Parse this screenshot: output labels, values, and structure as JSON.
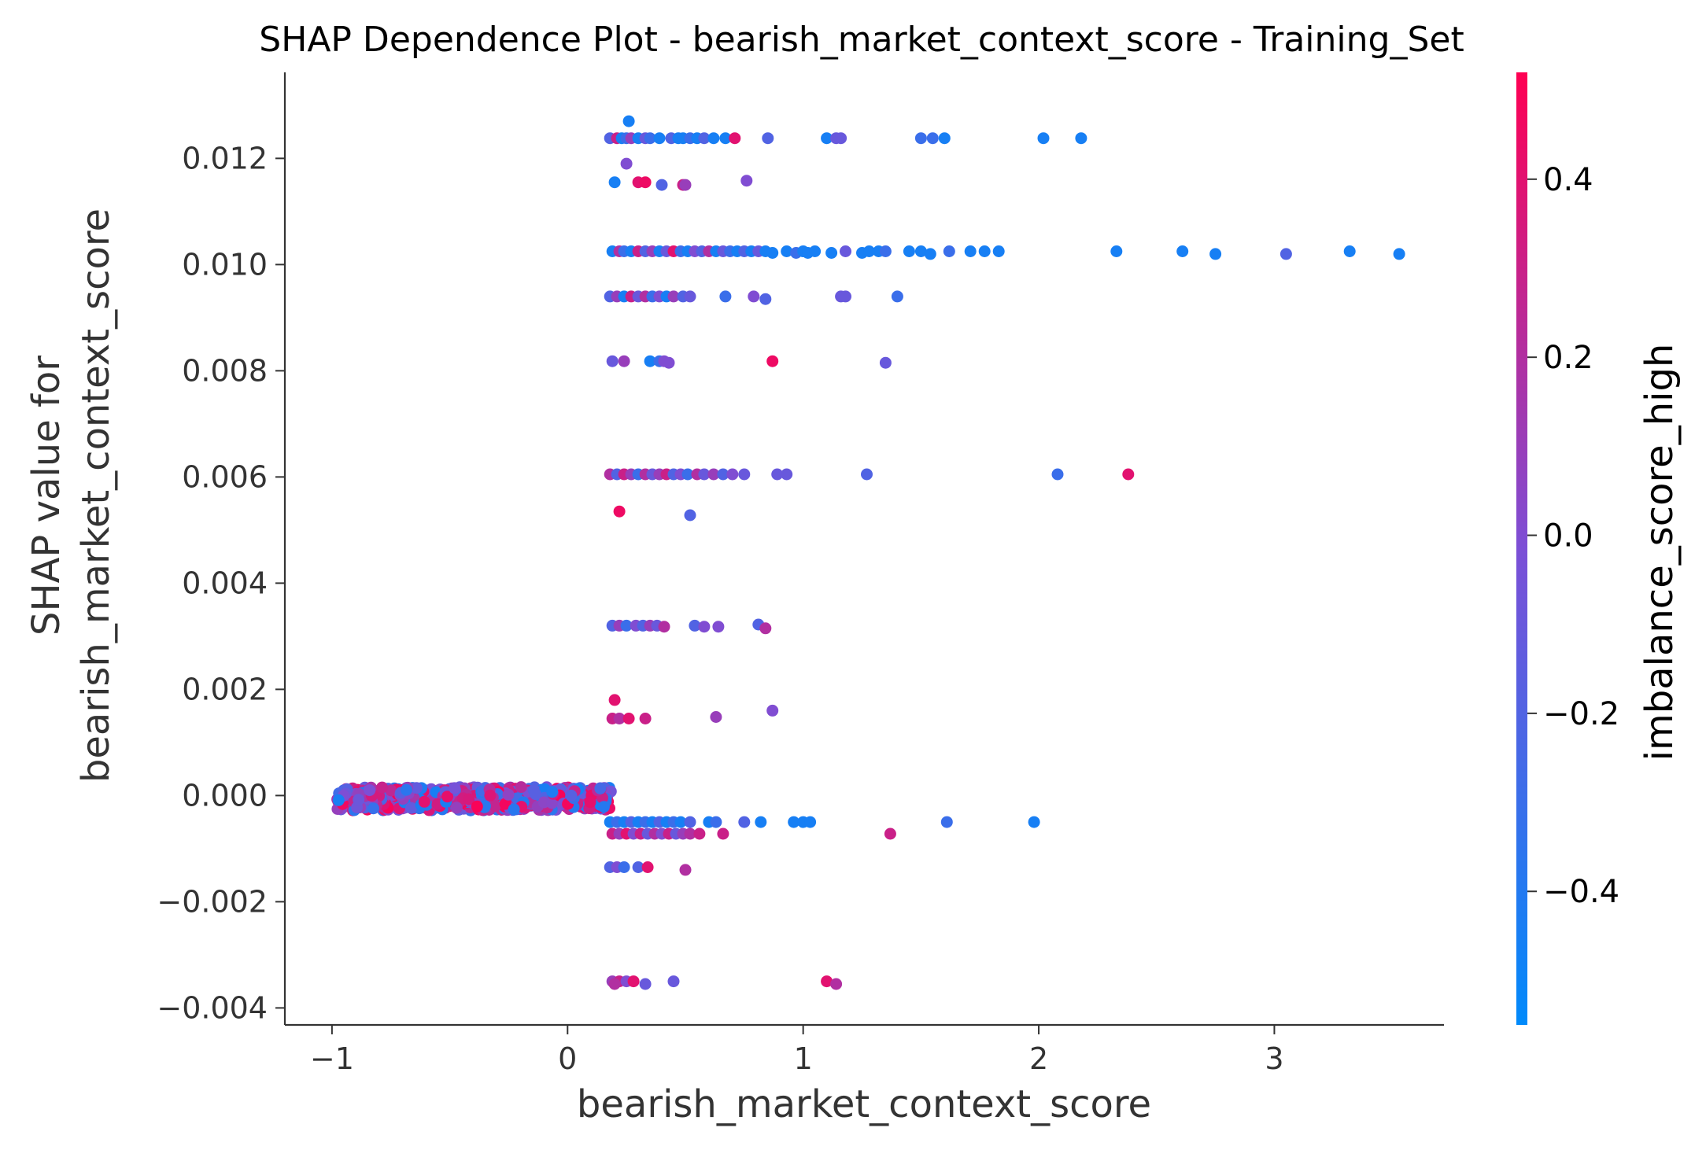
{
  "colors": {
    "cmap_low": "#008afb",
    "cmap_mid": "#7c4fd6",
    "cmap_high": "#ff0052",
    "axis": "#333333",
    "background": "#ffffff"
  },
  "chart_data": {
    "type": "scatter",
    "title": "SHAP Dependence Plot - bearish_market_context_score - Training_Set",
    "xlabel": "bearish_market_context_score",
    "ylabel_lines": [
      "SHAP value for",
      "bearish_market_context_score"
    ],
    "xlim": [
      -1.2,
      3.72
    ],
    "ylim": [
      -0.00432,
      0.01362
    ],
    "xticks": [
      {
        "value": -1,
        "label": "−1"
      },
      {
        "value": 0,
        "label": "0"
      },
      {
        "value": 1,
        "label": "1"
      },
      {
        "value": 2,
        "label": "2"
      },
      {
        "value": 3,
        "label": "3"
      }
    ],
    "yticks": [
      {
        "value": -0.004,
        "label": "−0.004"
      },
      {
        "value": -0.002,
        "label": "−0.002"
      },
      {
        "value": 0.0,
        "label": "0.000"
      },
      {
        "value": 0.002,
        "label": "0.002"
      },
      {
        "value": 0.004,
        "label": "0.004"
      },
      {
        "value": 0.006,
        "label": "0.006"
      },
      {
        "value": 0.008,
        "label": "0.008"
      },
      {
        "value": 0.01,
        "label": "0.010"
      },
      {
        "value": 0.012,
        "label": "0.012"
      }
    ],
    "grid": false,
    "colorbar": {
      "label": "imbalance_score_high",
      "range": [
        -0.55,
        0.52
      ],
      "ticks": [
        {
          "value": -0.4,
          "label": "−0.4"
        },
        {
          "value": -0.2,
          "label": "−0.2"
        },
        {
          "value": 0.0,
          "label": "0.0"
        },
        {
          "value": 0.2,
          "label": "0.2"
        },
        {
          "value": 0.4,
          "label": "0.4"
        }
      ]
    },
    "dense_band": {
      "x_range": [
        -0.98,
        0.19
      ],
      "y_range": [
        -0.00028,
        0.00016
      ],
      "point_count": 700
    },
    "points": [
      [
        0.26,
        0.0127,
        -0.45
      ],
      [
        0.18,
        0.01238,
        -0.2
      ],
      [
        0.21,
        0.01238,
        0.3
      ],
      [
        0.23,
        0.01238,
        -0.45
      ],
      [
        0.25,
        0.01238,
        -0.3
      ],
      [
        0.27,
        0.01238,
        0.1
      ],
      [
        0.3,
        0.01238,
        -0.45
      ],
      [
        0.33,
        0.01238,
        -0.1
      ],
      [
        0.35,
        0.01238,
        -0.3
      ],
      [
        0.39,
        0.01238,
        -0.45
      ],
      [
        0.44,
        0.01238,
        -0.2
      ],
      [
        0.47,
        0.01238,
        -0.45
      ],
      [
        0.49,
        0.01238,
        -0.45
      ],
      [
        0.52,
        0.01238,
        -0.3
      ],
      [
        0.55,
        0.01238,
        -0.45
      ],
      [
        0.58,
        0.01238,
        -0.2
      ],
      [
        0.62,
        0.01238,
        -0.45
      ],
      [
        0.67,
        0.01238,
        -0.45
      ],
      [
        0.71,
        0.01238,
        0.4
      ],
      [
        0.85,
        0.01238,
        -0.2
      ],
      [
        1.1,
        0.01238,
        -0.45
      ],
      [
        1.14,
        0.01238,
        -0.1
      ],
      [
        1.16,
        0.01238,
        -0.1
      ],
      [
        1.5,
        0.01238,
        -0.3
      ],
      [
        1.55,
        0.01238,
        -0.3
      ],
      [
        1.6,
        0.01238,
        -0.45
      ],
      [
        2.02,
        0.01238,
        -0.45
      ],
      [
        2.18,
        0.01238,
        -0.45
      ],
      [
        0.25,
        0.0119,
        0.0
      ],
      [
        0.2,
        0.01155,
        -0.45
      ],
      [
        0.3,
        0.01155,
        0.4
      ],
      [
        0.33,
        0.01155,
        0.45
      ],
      [
        0.4,
        0.0115,
        -0.2
      ],
      [
        0.49,
        0.0115,
        0.3
      ],
      [
        0.5,
        0.0115,
        0.1
      ],
      [
        0.76,
        0.01158,
        0.0
      ],
      [
        0.19,
        0.01025,
        -0.45
      ],
      [
        0.22,
        0.01025,
        0.2
      ],
      [
        0.24,
        0.01025,
        -0.3
      ],
      [
        0.27,
        0.01025,
        -0.45
      ],
      [
        0.3,
        0.01025,
        0.3
      ],
      [
        0.33,
        0.01025,
        -0.2
      ],
      [
        0.36,
        0.01025,
        0.1
      ],
      [
        0.39,
        0.01025,
        -0.45
      ],
      [
        0.42,
        0.01025,
        -0.1
      ],
      [
        0.45,
        0.01025,
        0.4
      ],
      [
        0.48,
        0.01025,
        -0.3
      ],
      [
        0.51,
        0.01025,
        -0.45
      ],
      [
        0.54,
        0.01025,
        0.0
      ],
      [
        0.57,
        0.01025,
        -0.2
      ],
      [
        0.6,
        0.01025,
        0.2
      ],
      [
        0.63,
        0.01025,
        -0.45
      ],
      [
        0.66,
        0.01025,
        -0.1
      ],
      [
        0.69,
        0.01025,
        -0.3
      ],
      [
        0.72,
        0.01025,
        -0.45
      ],
      [
        0.75,
        0.01025,
        -0.2
      ],
      [
        0.78,
        0.01025,
        -0.45
      ],
      [
        0.81,
        0.01025,
        -0.1
      ],
      [
        0.84,
        0.01025,
        -0.45
      ],
      [
        0.87,
        0.01022,
        -0.45
      ],
      [
        0.93,
        0.01025,
        -0.45
      ],
      [
        0.97,
        0.01022,
        -0.3
      ],
      [
        1.0,
        0.01025,
        -0.45
      ],
      [
        1.02,
        0.01022,
        -0.45
      ],
      [
        1.05,
        0.01025,
        -0.45
      ],
      [
        1.12,
        0.01022,
        -0.45
      ],
      [
        1.18,
        0.01025,
        -0.1
      ],
      [
        1.25,
        0.01022,
        -0.45
      ],
      [
        1.28,
        0.01025,
        -0.45
      ],
      [
        1.32,
        0.01025,
        -0.45
      ],
      [
        1.35,
        0.01025,
        -0.3
      ],
      [
        1.45,
        0.01025,
        -0.45
      ],
      [
        1.5,
        0.01025,
        -0.45
      ],
      [
        1.54,
        0.0102,
        -0.45
      ],
      [
        1.62,
        0.01025,
        -0.3
      ],
      [
        1.71,
        0.01025,
        -0.45
      ],
      [
        1.77,
        0.01025,
        -0.45
      ],
      [
        1.83,
        0.01025,
        -0.45
      ],
      [
        2.33,
        0.01025,
        -0.45
      ],
      [
        2.61,
        0.01025,
        -0.45
      ],
      [
        2.75,
        0.0102,
        -0.45
      ],
      [
        3.05,
        0.0102,
        -0.2
      ],
      [
        3.32,
        0.01025,
        -0.45
      ],
      [
        3.53,
        0.0102,
        -0.45
      ],
      [
        0.18,
        0.0094,
        -0.2
      ],
      [
        0.21,
        0.0094,
        0.1
      ],
      [
        0.24,
        0.0094,
        -0.45
      ],
      [
        0.27,
        0.0094,
        0.3
      ],
      [
        0.3,
        0.0094,
        -0.1
      ],
      [
        0.33,
        0.0094,
        0.2
      ],
      [
        0.36,
        0.0094,
        -0.3
      ],
      [
        0.39,
        0.0094,
        0.0
      ],
      [
        0.42,
        0.0094,
        -0.45
      ],
      [
        0.45,
        0.0094,
        0.1
      ],
      [
        0.49,
        0.0094,
        -0.2
      ],
      [
        0.52,
        0.0094,
        -0.1
      ],
      [
        0.67,
        0.0094,
        -0.3
      ],
      [
        0.79,
        0.0094,
        0.0
      ],
      [
        0.84,
        0.00935,
        -0.2
      ],
      [
        1.16,
        0.0094,
        -0.1
      ],
      [
        1.18,
        0.0094,
        -0.1
      ],
      [
        1.4,
        0.0094,
        -0.3
      ],
      [
        0.19,
        0.00818,
        -0.1
      ],
      [
        0.24,
        0.00818,
        0.1
      ],
      [
        0.35,
        0.00818,
        -0.45
      ],
      [
        0.39,
        0.00818,
        -0.3
      ],
      [
        0.41,
        0.00818,
        0.0
      ],
      [
        0.43,
        0.00815,
        0.0
      ],
      [
        0.87,
        0.00818,
        0.45
      ],
      [
        1.35,
        0.00815,
        -0.1
      ],
      [
        0.18,
        0.00605,
        0.2
      ],
      [
        0.21,
        0.00605,
        -0.2
      ],
      [
        0.24,
        0.00605,
        0.3
      ],
      [
        0.27,
        0.00605,
        0.1
      ],
      [
        0.3,
        0.00605,
        -0.3
      ],
      [
        0.33,
        0.00605,
        0.2
      ],
      [
        0.36,
        0.00605,
        -0.1
      ],
      [
        0.39,
        0.00605,
        0.1
      ],
      [
        0.42,
        0.00605,
        0.3
      ],
      [
        0.45,
        0.00605,
        -0.2
      ],
      [
        0.48,
        0.00605,
        0.0
      ],
      [
        0.51,
        0.00605,
        -0.3
      ],
      [
        0.55,
        0.00605,
        0.2
      ],
      [
        0.58,
        0.00605,
        -0.1
      ],
      [
        0.62,
        0.00605,
        0.1
      ],
      [
        0.66,
        0.00605,
        -0.2
      ],
      [
        0.7,
        0.00605,
        0.0
      ],
      [
        0.75,
        0.00605,
        -0.1
      ],
      [
        0.89,
        0.00605,
        -0.1
      ],
      [
        0.93,
        0.00605,
        -0.1
      ],
      [
        1.27,
        0.00605,
        -0.2
      ],
      [
        2.08,
        0.00605,
        -0.3
      ],
      [
        2.38,
        0.00605,
        0.4
      ],
      [
        0.22,
        0.00535,
        0.45
      ],
      [
        0.52,
        0.00528,
        -0.2
      ],
      [
        0.19,
        0.0032,
        -0.2
      ],
      [
        0.22,
        0.0032,
        0.1
      ],
      [
        0.25,
        0.0032,
        -0.3
      ],
      [
        0.29,
        0.0032,
        0.0
      ],
      [
        0.32,
        0.0032,
        -0.2
      ],
      [
        0.35,
        0.0032,
        0.1
      ],
      [
        0.38,
        0.0032,
        -0.1
      ],
      [
        0.41,
        0.00318,
        0.2
      ],
      [
        0.54,
        0.0032,
        -0.2
      ],
      [
        0.58,
        0.00318,
        0.0
      ],
      [
        0.64,
        0.00318,
        0.0
      ],
      [
        0.81,
        0.00322,
        -0.2
      ],
      [
        0.84,
        0.00315,
        0.2
      ],
      [
        0.2,
        0.0018,
        0.4
      ],
      [
        0.19,
        0.00145,
        0.3
      ],
      [
        0.22,
        0.00145,
        0.2
      ],
      [
        0.26,
        0.00145,
        0.4
      ],
      [
        0.33,
        0.00145,
        0.3
      ],
      [
        0.63,
        0.00148,
        0.1
      ],
      [
        0.87,
        0.0016,
        0.0
      ],
      [
        0.18,
        -0.0005,
        -0.45
      ],
      [
        0.21,
        -0.0005,
        -0.3
      ],
      [
        0.24,
        -0.0005,
        -0.45
      ],
      [
        0.27,
        -0.0005,
        -0.2
      ],
      [
        0.3,
        -0.0005,
        -0.45
      ],
      [
        0.33,
        -0.0005,
        -0.3
      ],
      [
        0.36,
        -0.0005,
        -0.45
      ],
      [
        0.39,
        -0.0005,
        -0.2
      ],
      [
        0.42,
        -0.0005,
        -0.45
      ],
      [
        0.45,
        -0.0005,
        -0.3
      ],
      [
        0.48,
        -0.0005,
        -0.45
      ],
      [
        0.52,
        -0.0005,
        -0.2
      ],
      [
        0.6,
        -0.0005,
        -0.45
      ],
      [
        0.63,
        -0.0005,
        -0.3
      ],
      [
        0.75,
        -0.0005,
        -0.2
      ],
      [
        0.82,
        -0.0005,
        -0.45
      ],
      [
        0.96,
        -0.0005,
        -0.45
      ],
      [
        1.0,
        -0.0005,
        -0.45
      ],
      [
        1.03,
        -0.0005,
        -0.45
      ],
      [
        1.61,
        -0.0005,
        -0.3
      ],
      [
        1.98,
        -0.0005,
        -0.45
      ],
      [
        0.19,
        -0.00072,
        0.3
      ],
      [
        0.22,
        -0.00072,
        0.1
      ],
      [
        0.25,
        -0.00072,
        0.4
      ],
      [
        0.28,
        -0.00072,
        0.0
      ],
      [
        0.31,
        -0.00072,
        0.3
      ],
      [
        0.34,
        -0.00072,
        -0.1
      ],
      [
        0.37,
        -0.00072,
        0.2
      ],
      [
        0.4,
        -0.00072,
        0.0
      ],
      [
        0.43,
        -0.00072,
        0.3
      ],
      [
        0.46,
        -0.00072,
        -0.1
      ],
      [
        0.49,
        -0.00072,
        0.1
      ],
      [
        0.52,
        -0.00072,
        0.2
      ],
      [
        0.56,
        -0.00072,
        0.3
      ],
      [
        0.66,
        -0.00072,
        0.3
      ],
      [
        1.37,
        -0.00072,
        0.3
      ],
      [
        0.18,
        -0.00135,
        -0.2
      ],
      [
        0.21,
        -0.00135,
        0.0
      ],
      [
        0.24,
        -0.00135,
        -0.3
      ],
      [
        0.3,
        -0.00135,
        -0.2
      ],
      [
        0.34,
        -0.00135,
        0.4
      ],
      [
        0.5,
        -0.0014,
        0.2
      ],
      [
        0.19,
        -0.0035,
        0.1
      ],
      [
        0.22,
        -0.0035,
        0.3
      ],
      [
        0.25,
        -0.0035,
        0.0
      ],
      [
        0.28,
        -0.0035,
        0.4
      ],
      [
        0.2,
        -0.00355,
        0.2
      ],
      [
        0.33,
        -0.00355,
        -0.1
      ],
      [
        0.45,
        -0.0035,
        -0.1
      ],
      [
        1.1,
        -0.0035,
        0.4
      ],
      [
        1.14,
        -0.00355,
        0.2
      ]
    ]
  }
}
